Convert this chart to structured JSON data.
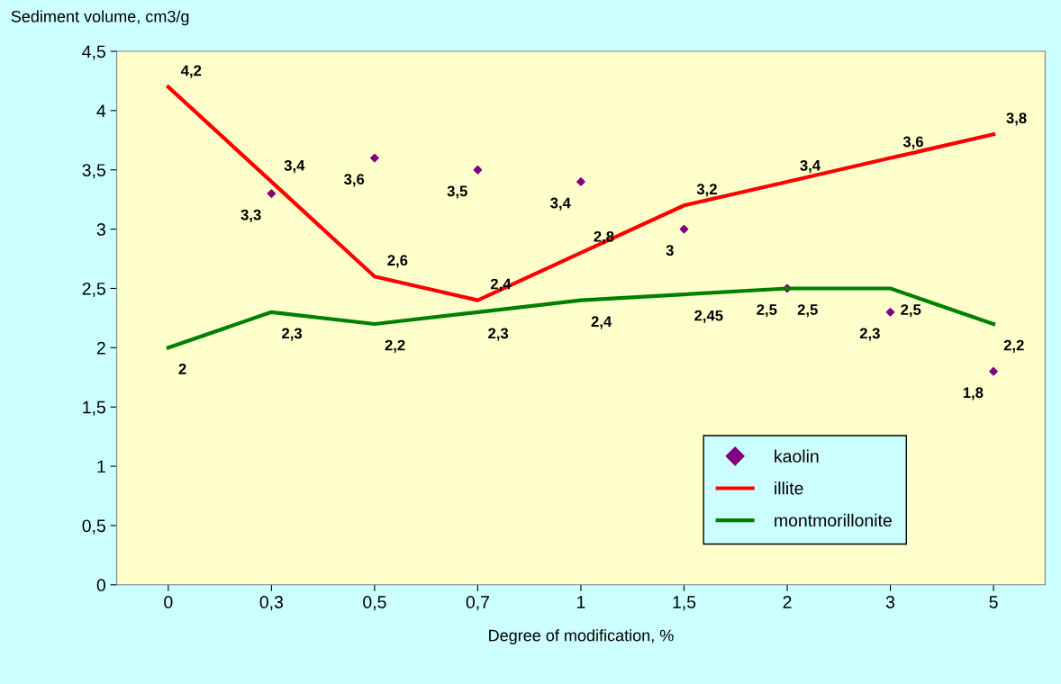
{
  "chart_data": {
    "type": "line",
    "ylabel": "Sediment volume, cm3/g",
    "xlabel": "Degree of modification, %",
    "categories": [
      "0",
      "0,3",
      "0,5",
      "0,7",
      "1",
      "1,5",
      "2",
      "3",
      "5"
    ],
    "ylim": [
      0,
      4.5
    ],
    "yticks": [
      0,
      {
        "value": 0.5,
        "label": "0,5"
      },
      1,
      {
        "value": 1.5,
        "label": "1,5"
      },
      2,
      {
        "value": 2.5,
        "label": "2,5"
      },
      3,
      {
        "value": 3.5,
        "label": "3,5"
      },
      4,
      {
        "value": 4.5,
        "label": "4,5"
      }
    ],
    "grid": false,
    "legend": "bottom right",
    "series": [
      {
        "name": "kaolin",
        "type": "scatter",
        "marker": "diamond",
        "color": "#800080",
        "values": [
          null,
          3.3,
          3.6,
          3.5,
          3.4,
          3.0,
          2.5,
          2.3,
          1.8
        ],
        "value_labels": [
          null,
          "3,3",
          "3,6",
          "3,5",
          "3,4",
          "3",
          "2,5",
          "2,3",
          "1,8"
        ]
      },
      {
        "name": "illite",
        "color": "#ff0000",
        "values": [
          4.2,
          3.4,
          2.6,
          2.4,
          2.8,
          3.2,
          3.4,
          3.6,
          3.8
        ],
        "value_labels": [
          "4,2",
          "3,4",
          "2,6",
          "2,4",
          "2,8",
          "3,2",
          "3,4",
          "3,6",
          "3,8"
        ]
      },
      {
        "name": "montmorillonite",
        "color": "#008000",
        "values": [
          2,
          2.3,
          2.2,
          2.3,
          2.4,
          2.45,
          2.5,
          2.5,
          2.2
        ],
        "value_labels": [
          "2",
          "2,3",
          "2,2",
          "2,3",
          "2,4",
          "2,45",
          "2,5",
          "2,5",
          "2,2"
        ]
      }
    ]
  }
}
